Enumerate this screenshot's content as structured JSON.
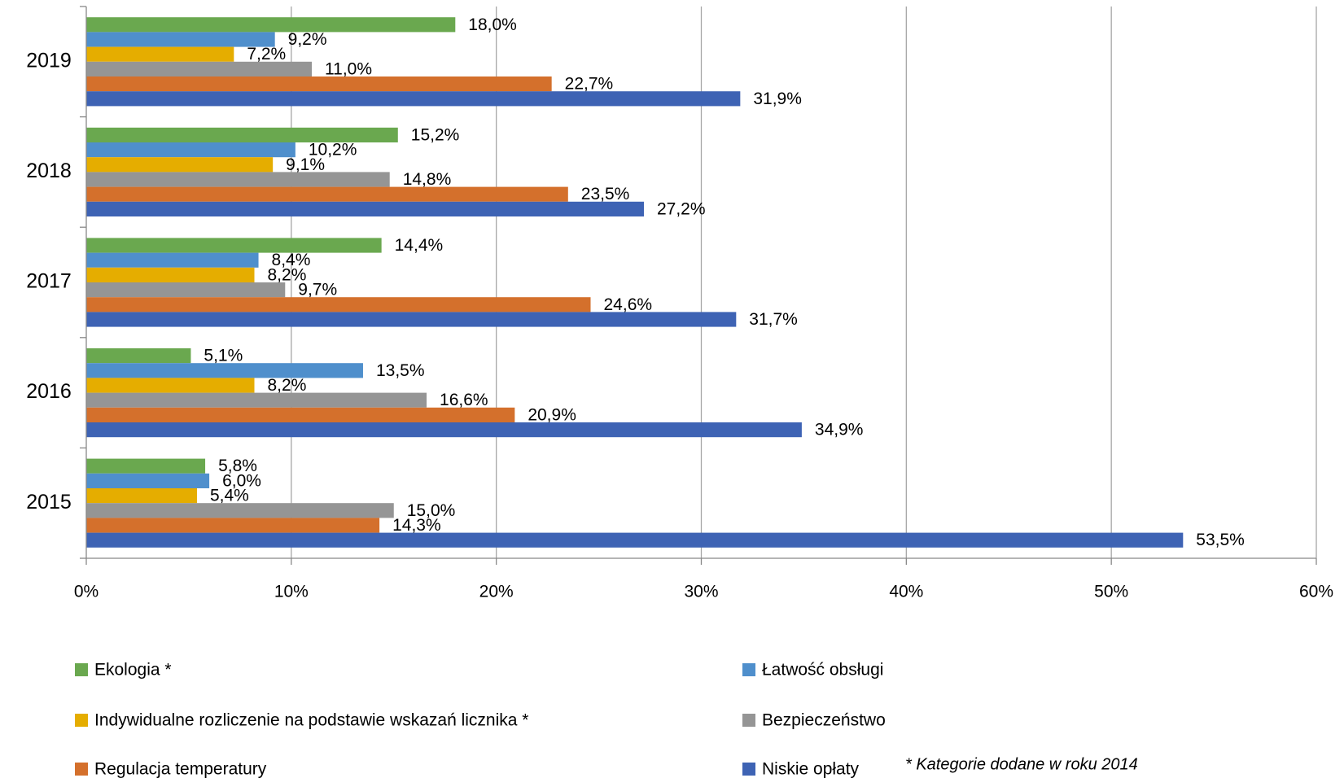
{
  "chart_data": {
    "type": "bar",
    "orientation": "horizontal",
    "categories": [
      "2019",
      "2018",
      "2017",
      "2016",
      "2015"
    ],
    "series": [
      {
        "name": "Ekologia *",
        "color": "#6aa84f",
        "values": [
          18.0,
          15.2,
          14.4,
          5.1,
          5.8
        ],
        "value_labels": [
          "18,0%",
          "15,2%",
          "14,4%",
          "5,1%",
          "5,8%"
        ]
      },
      {
        "name": "Łatwość obsługi",
        "color": "#4f8fcc",
        "values": [
          9.2,
          10.2,
          8.4,
          13.5,
          6.0
        ],
        "value_labels": [
          "9,2%",
          "10,2%",
          "8,4%",
          "13,5%",
          "6,0%"
        ]
      },
      {
        "name": "Indywidualne rozliczenie na podstawie wskazań licznika *",
        "color": "#e5ad00",
        "values": [
          7.2,
          9.1,
          8.2,
          8.2,
          5.4
        ],
        "value_labels": [
          "7,2%",
          "9,1%",
          "8,2%",
          "8,2%",
          "5,4%"
        ]
      },
      {
        "name": "Bezpieczeństwo",
        "color": "#959595",
        "values": [
          11.0,
          14.8,
          9.7,
          16.6,
          15.0
        ],
        "value_labels": [
          "11,0%",
          "14,8%",
          "9,7%",
          "16,6%",
          "15,0%"
        ]
      },
      {
        "name": "Regulacja temperatury",
        "color": "#d4702c",
        "values": [
          22.7,
          23.5,
          24.6,
          20.9,
          14.3
        ],
        "value_labels": [
          "22,7%",
          "23,5%",
          "24,6%",
          "20,9%",
          "14,3%"
        ]
      },
      {
        "name": "Niskie opłaty",
        "color": "#3e63b4",
        "values": [
          31.9,
          27.2,
          31.7,
          34.9,
          53.5
        ],
        "value_labels": [
          "31,9%",
          "27,2%",
          "31,7%",
          "34,9%",
          "53,5%"
        ]
      }
    ],
    "xlim": [
      0,
      60
    ],
    "xticks": [
      {
        "value": 0,
        "label": "0%"
      },
      {
        "value": 10,
        "label": "10%"
      },
      {
        "value": 20,
        "label": "20%"
      },
      {
        "value": 30,
        "label": "30%"
      },
      {
        "value": 40,
        "label": "40%"
      },
      {
        "value": 50,
        "label": "50%"
      },
      {
        "value": 60,
        "label": "60%"
      }
    ],
    "grid": true,
    "annotation": "* Kategorie dodane w roku 2014"
  }
}
